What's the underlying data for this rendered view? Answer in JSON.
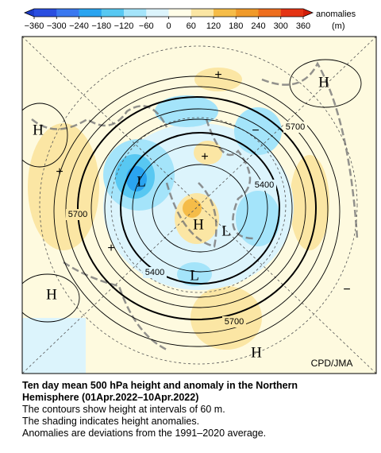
{
  "colorbar": {
    "label": "anomalies",
    "unit": "(m)",
    "ticks": [
      {
        "value": -360,
        "label": "−360"
      },
      {
        "value": -300,
        "label": "−300"
      },
      {
        "value": -240,
        "label": "−240"
      },
      {
        "value": -180,
        "label": "−180"
      },
      {
        "value": -120,
        "label": "−120"
      },
      {
        "value": -60,
        "label": "−60"
      },
      0,
      60,
      120,
      180,
      240,
      300,
      360
    ],
    "colors": [
      "#2a4ee0",
      "#3a78f0",
      "#2aa4f0",
      "#58c8f2",
      "#a4e4fa",
      "#dcf4fc",
      "#fffde8",
      "#fbe6a4",
      "#f5bc48",
      "#f09a2a",
      "#ee6e1e",
      "#e43414"
    ],
    "under_color": "#1e3cc8",
    "over_color": "#d21e0a"
  },
  "map": {
    "pressure_labels": [
      "H",
      "H",
      "H",
      "H",
      "H",
      "L",
      "L",
      "L"
    ],
    "plus_marks": [
      "+",
      "+",
      "+",
      "+"
    ],
    "minus_marks": [
      "−",
      "−"
    ],
    "contour_labels": [
      5700,
      5400,
      5700,
      5400,
      5700
    ],
    "credit": "CPD/JMA"
  },
  "caption": {
    "title": "Ten day mean 500 hPa height and anomaly in the Northern Hemisphere (01Apr.2022–10Apr.2022)",
    "lines": [
      "The contours show height at intervals of 60 m.",
      "The shading indicates height anomalies.",
      "Anomalies are deviations from the 1991–2020 average."
    ]
  }
}
